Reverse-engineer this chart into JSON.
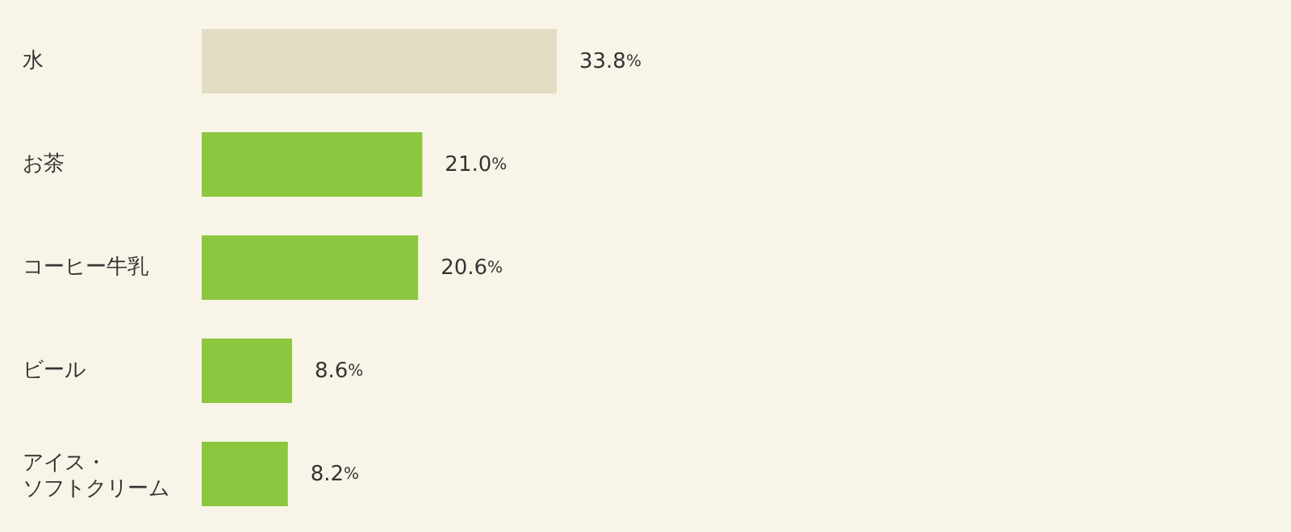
{
  "chart_data": {
    "type": "bar",
    "orientation": "horizontal",
    "categories": [
      "水",
      "お茶",
      "コーヒー牛乳",
      "ビール",
      "アイス・ソフトクリーム"
    ],
    "values": [
      33.8,
      21.0,
      20.6,
      8.6,
      8.2
    ],
    "colors": [
      "#e3ddc3",
      "#8dc63f",
      "#8dc63f",
      "#8dc63f",
      "#8dc63f"
    ],
    "value_labels": [
      "33.8%",
      "21.0%",
      "20.6%",
      "8.6%",
      "8.2%"
    ]
  }
}
